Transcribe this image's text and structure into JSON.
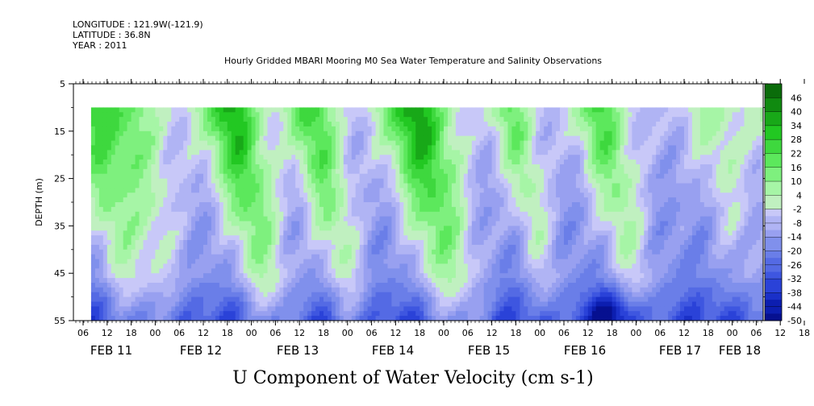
{
  "header": {
    "longitude": "LONGITUDE : 121.9W(-121.9)",
    "latitude": "LATITUDE : 36.8N",
    "year": "YEAR : 2011"
  },
  "chart_data": {
    "type": "heatmap",
    "title": "Hourly Gridded MBARI Mooring M0 Sea Water Temperature and Salinity Observations",
    "xlabel": "U Component of Water Velocity (cm s-1)",
    "ylabel": "DEPTH (m)",
    "y_ticks": [
      5,
      15,
      25,
      35,
      45,
      55
    ],
    "ylim": [
      55,
      5
    ],
    "x_hour_ticks": [
      "06",
      "12",
      "18",
      "00",
      "06",
      "12",
      "18",
      "00",
      "06",
      "12",
      "18",
      "00",
      "06",
      "12",
      "18",
      "00",
      "06",
      "12",
      "18",
      "00",
      "06",
      "12",
      "18",
      "00",
      "06",
      "12",
      "18",
      "00",
      "06",
      "12",
      "18",
      "00"
    ],
    "x_date_labels": [
      "FEB 11",
      "FEB 12",
      "FEB 13",
      "FEB 14",
      "FEB 15",
      "FEB 16",
      "FEB 17",
      "FEB 18"
    ],
    "colorbar_labels": [
      "46",
      "40",
      "34",
      "28",
      "22",
      "16",
      "10",
      "4",
      "-2",
      "-8",
      "-14",
      "-20",
      "-26",
      "-32",
      "-38",
      "-44",
      "-50"
    ],
    "colorbar_range": [
      -50,
      52
    ],
    "data_depth_range": [
      10,
      55
    ],
    "description_of_field": "Velocity mostly between -30 and +25 cm/s; positive (green) bands in upper layers around FEB 11-12, FEB 12 18h, FEB 13 12-18h, FEB 14 18h, FEB 15 06h, FEB 16 00-12h, FEB 17 06-18h; negative (blue) elsewhere, strongest near bottom (~FEB 16 18h)."
  },
  "colors": {
    "positive_scale": [
      "#a6f5a6",
      "#7ef07e",
      "#5ce85c",
      "#3ed83e",
      "#22c822",
      "#18a818",
      "#108a10",
      "#0a6c0a",
      "#064e06"
    ],
    "negative_scale": [
      "#c8c8f8",
      "#b0b4f4",
      "#98a0f0",
      "#8090ec",
      "#6a7ee8",
      "#546ae4",
      "#3e56e0",
      "#2a42d8",
      "#1a30c8",
      "#0c1eb0",
      "#061090"
    ]
  }
}
